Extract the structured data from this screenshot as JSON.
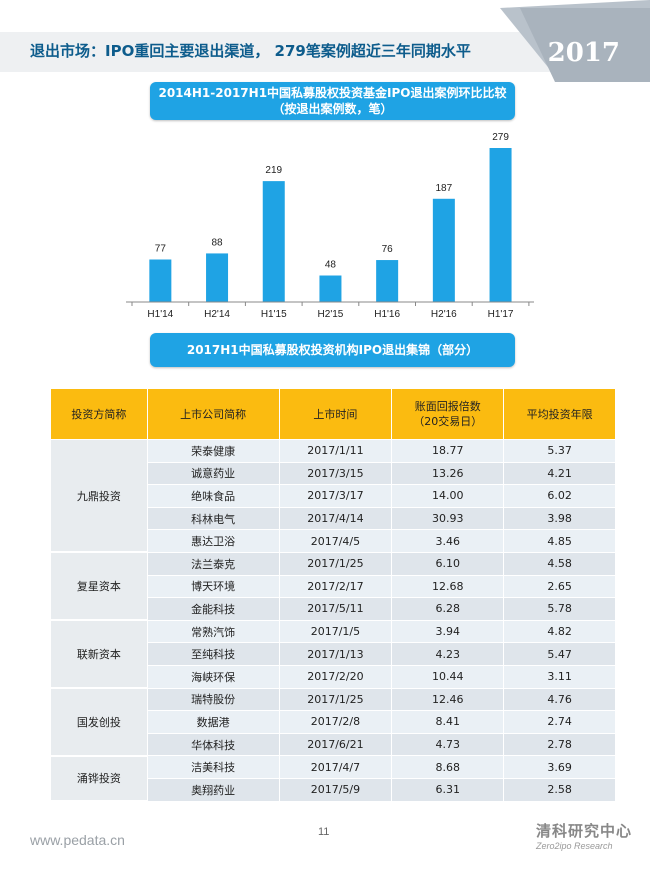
{
  "header": {
    "title": "退出市场：IPO重回主要退出渠道， 279笔案例超近三年同期水平",
    "year": "2017"
  },
  "chart_section": {
    "title_line1": "2014H1-2017H1中国私募股权投资基金IPO退出案例环比比较",
    "title_line2": "（按退出案例数，笔）"
  },
  "chart_data": {
    "type": "bar",
    "categories": [
      "H1'14",
      "H2'14",
      "H1'15",
      "H2'15",
      "H1'16",
      "H2'16",
      "H1'17"
    ],
    "values": [
      77,
      88,
      219,
      48,
      76,
      187,
      279
    ],
    "title": "2014H1-2017H1中国私募股权投资基金IPO退出案例环比比较",
    "subtitle": "（按退出案例数，笔）",
    "bar_color": "#1fa3e4",
    "grid": false,
    "ylim": [
      0,
      300
    ]
  },
  "table_section": {
    "title": "2017H1中国私募股权投资机构IPO退出集锦（部分）"
  },
  "table": {
    "headers": [
      "投资方简称",
      "上市公司简称",
      "上市时间",
      "账面回报倍数",
      "（20交易日）",
      "平均投资年限"
    ],
    "groups": [
      {
        "investor": "九鼎投资",
        "rows": [
          [
            "荣泰健康",
            "2017/1/11",
            "18.77",
            "5.37"
          ],
          [
            "诚意药业",
            "2017/3/15",
            "13.26",
            "4.21"
          ],
          [
            "绝味食品",
            "2017/3/17",
            "14.00",
            "6.02"
          ],
          [
            "科林电气",
            "2017/4/14",
            "30.93",
            "3.98"
          ],
          [
            "惠达卫浴",
            "2017/4/5",
            "3.46",
            "4.85"
          ]
        ]
      },
      {
        "investor": "复星资本",
        "rows": [
          [
            "法兰泰克",
            "2017/1/25",
            "6.10",
            "4.58"
          ],
          [
            "博天环境",
            "2017/2/17",
            "12.68",
            "2.65"
          ],
          [
            "金能科技",
            "2017/5/11",
            "6.28",
            "5.78"
          ]
        ]
      },
      {
        "investor": "联新资本",
        "rows": [
          [
            "常熟汽饰",
            "2017/1/5",
            "3.94",
            "4.82"
          ],
          [
            "至纯科技",
            "2017/1/13",
            "4.23",
            "5.47"
          ],
          [
            "海峡环保",
            "2017/2/20",
            "10.44",
            "3.11"
          ]
        ]
      },
      {
        "investor": "国发创投",
        "rows": [
          [
            "瑞特股份",
            "2017/1/25",
            "12.46",
            "4.76"
          ],
          [
            "数据港",
            "2017/2/8",
            "8.41",
            "2.74"
          ],
          [
            "华体科技",
            "2017/6/21",
            "4.73",
            "2.78"
          ]
        ]
      },
      {
        "investor": "涌铧投资",
        "rows": [
          [
            "洁美科技",
            "2017/4/7",
            "8.68",
            "3.69"
          ],
          [
            "奥翔药业",
            "2017/5/9",
            "6.31",
            "2.58"
          ]
        ]
      }
    ]
  },
  "footer": {
    "website": "www.pedata.cn",
    "page": "11",
    "brand": "清科研究中心",
    "brand_sub": "Zero2ipo Research"
  },
  "colors": {
    "accent": "#1fa3e4",
    "header_text": "#0d5c8c",
    "table_header": "#fbbb10"
  }
}
